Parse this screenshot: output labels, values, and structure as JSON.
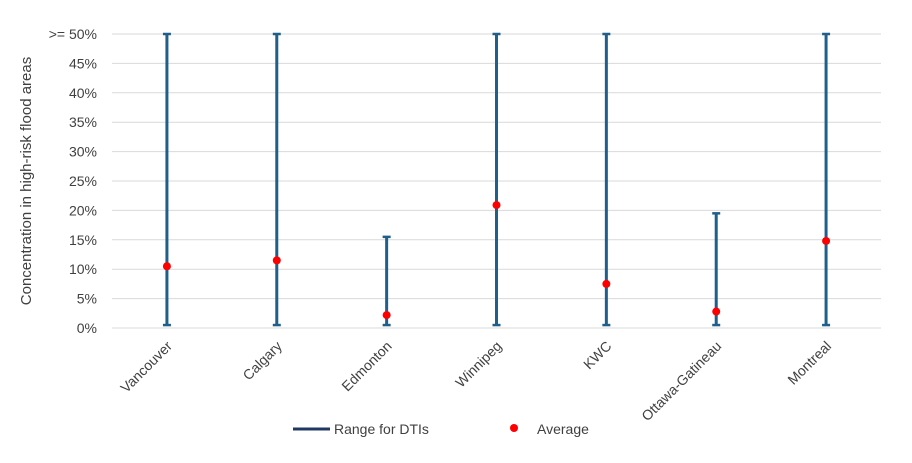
{
  "chart_data": {
    "type": "scatter",
    "title": "",
    "xlabel": "",
    "ylabel": "Concentration in high-risk flood areas",
    "ylim": [
      0,
      50
    ],
    "y_tick_labels": [
      "0%",
      "5%",
      "10%",
      "15%",
      "20%",
      "25%",
      "30%",
      "35%",
      "40%",
      "45%",
      ">= 50%"
    ],
    "grid": true,
    "legend_position": "bottom",
    "categories": [
      "Vancouver",
      "Calgary",
      "Edmonton",
      "Winnipeg",
      "KWC",
      "Ottawa-Gatineau",
      "Montreal"
    ],
    "series": [
      {
        "name": "Range for DTIs",
        "kind": "error-range",
        "color": "#1F5F8B",
        "low": [
          0.5,
          0.5,
          0.5,
          0.5,
          0.5,
          0.5,
          0.5
        ],
        "high": [
          50,
          50,
          15.5,
          50,
          50,
          19.5,
          50
        ]
      },
      {
        "name": "Average",
        "kind": "point",
        "color": "#FF0000",
        "values": [
          10.5,
          11.5,
          2.2,
          20.9,
          7.5,
          2.8,
          14.8
        ]
      }
    ],
    "legend": {
      "range_label": "Range for DTIs",
      "range_color": "#1F3864",
      "average_label": "Average",
      "average_color": "#FF0000"
    }
  }
}
